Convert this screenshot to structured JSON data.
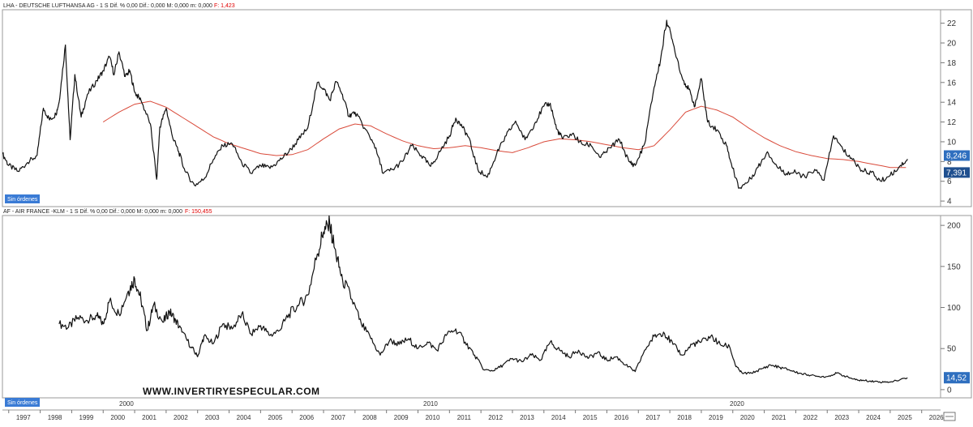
{
  "colors": {
    "price_line": "#111111",
    "moving_average": "#d94a3a",
    "badge_blue": "#3a7bd5",
    "price_box_blue": "#2f6fbf",
    "price_box_dark": "#1f4f8f",
    "red_text": "#e00000"
  },
  "panels": {
    "top": {
      "header": {
        "text": "LHA - DEUTSCHE LUFTHANSA AG - 1 S  Dif. % 0,00  Dif.: 0,000  M: 0,000  m: 0,000",
        "f_label": "F: 1,423"
      },
      "badge": "Sin órdenes",
      "price_tags": {
        "last": "8,246",
        "ma": "7,391"
      }
    },
    "bottom": {
      "header": {
        "text": "AF - AIR FRANCE -KLM - 1 S  Dif. % 0,00  Dif.: 0,000  M: 0,000  m: 0,000",
        "f_label": "F: 150,455"
      },
      "badge": "Sin órdenes",
      "price_tags": {
        "last": "14,52"
      },
      "decade_labels": [
        "2000",
        "2010",
        "2020"
      ]
    }
  },
  "watermark": "WWW.INVERTIRYESPECULAR.COM",
  "x_axis_years": [
    "1997",
    "1998",
    "1999",
    "2000",
    "2001",
    "2002",
    "2003",
    "2004",
    "2005",
    "2006",
    "2007",
    "2008",
    "2009",
    "2010",
    "2011",
    "2012",
    "2013",
    "2014",
    "2015",
    "2016",
    "2017",
    "2018",
    "2019",
    "2020",
    "2021",
    "2022",
    "2023",
    "2024",
    "2025",
    "2026"
  ],
  "chart_data": [
    {
      "type": "line",
      "title": "LHA - DEUTSCHE LUFTHANSA AG - 1 S",
      "xlabel": "",
      "ylabel": "",
      "xlim": [
        1996.8,
        2026.6
      ],
      "ylim": [
        3.6,
        23.2
      ],
      "yticks": [
        4,
        6,
        8,
        10,
        12,
        14,
        16,
        18,
        20,
        22
      ],
      "series": [
        {
          "role": "price",
          "x": [
            1996.8,
            1997.0,
            1997.3,
            1997.6,
            1997.9,
            1998.1,
            1998.3,
            1998.5,
            1998.6,
            1998.8,
            1998.95,
            1999.1,
            1999.3,
            1999.5,
            1999.8,
            2000.0,
            2000.2,
            2000.35,
            2000.5,
            2000.7,
            2000.85,
            2001.0,
            2001.2,
            2001.5,
            2001.7,
            2001.8,
            2002.0,
            2002.2,
            2002.4,
            2002.6,
            2002.9,
            2003.2,
            2003.5,
            2003.8,
            2004.1,
            2004.4,
            2004.7,
            2005.0,
            2005.3,
            2005.6,
            2005.9,
            2006.2,
            2006.5,
            2006.8,
            2007.0,
            2007.2,
            2007.4,
            2007.6,
            2007.8,
            2008.0,
            2008.3,
            2008.6,
            2008.9,
            2009.2,
            2009.5,
            2009.8,
            2010.1,
            2010.4,
            2010.7,
            2011.0,
            2011.2,
            2011.4,
            2011.6,
            2011.9,
            2012.2,
            2012.5,
            2012.8,
            2013.1,
            2013.4,
            2013.7,
            2014.0,
            2014.2,
            2014.4,
            2014.6,
            2014.9,
            2015.2,
            2015.5,
            2015.8,
            2016.1,
            2016.4,
            2016.7,
            2016.9,
            2017.2,
            2017.5,
            2017.7,
            2017.9,
            2018.1,
            2018.4,
            2018.6,
            2018.8,
            2019.0,
            2019.2,
            2019.5,
            2019.8,
            2020.0,
            2020.2,
            2020.5,
            2020.8,
            2021.1,
            2021.4,
            2021.7,
            2022.0,
            2022.3,
            2022.6,
            2022.9,
            2023.2,
            2023.5,
            2023.8,
            2024.1,
            2024.4,
            2024.7,
            2025.0,
            2025.3,
            2025.55
          ],
          "y": [
            8.8,
            7.6,
            7.0,
            7.9,
            8.6,
            13.4,
            12.2,
            12.8,
            14.0,
            19.8,
            10.2,
            16.8,
            12.5,
            14.8,
            16.2,
            17.2,
            18.6,
            16.8,
            19.1,
            16.6,
            17.2,
            15.0,
            14.2,
            11.8,
            6.2,
            11.5,
            13.4,
            10.5,
            9.0,
            7.0,
            5.6,
            6.2,
            8.2,
            9.6,
            9.8,
            7.9,
            6.8,
            7.6,
            7.3,
            8.1,
            9.0,
            10.2,
            11.4,
            16.0,
            15.4,
            14.2,
            16.1,
            14.8,
            12.6,
            13.0,
            11.4,
            9.8,
            6.8,
            7.2,
            8.0,
            9.6,
            8.6,
            7.5,
            9.0,
            10.6,
            12.4,
            11.5,
            10.5,
            7.2,
            6.4,
            8.8,
            10.6,
            12.1,
            10.2,
            11.8,
            13.6,
            13.9,
            11.3,
            10.3,
            10.8,
            9.8,
            9.6,
            8.4,
            9.4,
            10.2,
            8.0,
            7.6,
            9.8,
            15.5,
            18.2,
            22.3,
            20.0,
            16.4,
            15.3,
            13.6,
            16.4,
            12.0,
            11.2,
            9.6,
            7.3,
            5.3,
            6.0,
            7.4,
            9.0,
            7.5,
            6.8,
            6.9,
            6.4,
            7.2,
            6.1,
            10.6,
            9.2,
            8.2,
            7.1,
            6.9,
            6.0,
            6.6,
            7.5,
            8.25
          ]
        },
        {
          "role": "moving_average",
          "x": [
            2000.0,
            2000.5,
            2001.0,
            2001.5,
            2002.0,
            2002.5,
            2003.0,
            2003.5,
            2004.0,
            2004.5,
            2005.0,
            2005.5,
            2006.0,
            2006.5,
            2007.0,
            2007.5,
            2008.0,
            2008.5,
            2009.0,
            2009.5,
            2010.0,
            2010.5,
            2011.0,
            2011.5,
            2012.0,
            2012.5,
            2013.0,
            2013.5,
            2014.0,
            2014.5,
            2015.0,
            2015.5,
            2016.0,
            2016.5,
            2017.0,
            2017.5,
            2018.0,
            2018.5,
            2019.0,
            2019.5,
            2020.0,
            2020.5,
            2021.0,
            2021.5,
            2022.0,
            2022.5,
            2023.0,
            2023.5,
            2024.0,
            2024.5,
            2025.0,
            2025.5
          ],
          "y": [
            12.0,
            13.0,
            13.8,
            14.1,
            13.5,
            12.5,
            11.5,
            10.5,
            9.8,
            9.3,
            8.8,
            8.6,
            8.7,
            9.2,
            10.3,
            11.3,
            11.8,
            11.6,
            10.8,
            10.1,
            9.6,
            9.3,
            9.4,
            9.6,
            9.4,
            9.1,
            8.9,
            9.4,
            10.0,
            10.3,
            10.2,
            10.0,
            9.7,
            9.4,
            9.2,
            9.6,
            11.2,
            13.0,
            13.6,
            13.2,
            12.5,
            11.4,
            10.4,
            9.6,
            9.0,
            8.6,
            8.3,
            8.2,
            8.0,
            7.7,
            7.4,
            7.39
          ]
        }
      ]
    },
    {
      "type": "line",
      "title": "AF - AIR FRANCE -KLM - 1 S",
      "xlabel": "",
      "ylabel": "",
      "xlim": [
        1996.8,
        2026.6
      ],
      "ylim": [
        -8,
        210
      ],
      "yticks": [
        0,
        50,
        100,
        150,
        200
      ],
      "series": [
        {
          "role": "price",
          "x": [
            1998.6,
            1998.9,
            1999.2,
            1999.5,
            1999.8,
            2000.0,
            2000.2,
            2000.5,
            2000.8,
            2001.0,
            2001.2,
            2001.4,
            2001.6,
            2001.9,
            2002.1,
            2002.3,
            2002.5,
            2002.8,
            2003.0,
            2003.2,
            2003.5,
            2003.8,
            2004.1,
            2004.4,
            2004.7,
            2005.0,
            2005.3,
            2005.6,
            2005.9,
            2006.2,
            2006.5,
            2006.8,
            2007.0,
            2007.2,
            2007.4,
            2007.6,
            2007.9,
            2008.2,
            2008.5,
            2008.8,
            2009.1,
            2009.4,
            2009.7,
            2010.0,
            2010.3,
            2010.6,
            2010.9,
            2011.2,
            2011.5,
            2011.8,
            2012.1,
            2012.4,
            2012.7,
            2013.0,
            2013.3,
            2013.6,
            2013.9,
            2014.2,
            2014.5,
            2014.8,
            2015.1,
            2015.4,
            2015.7,
            2016.0,
            2016.3,
            2016.6,
            2016.9,
            2017.2,
            2017.5,
            2017.8,
            2018.1,
            2018.4,
            2018.7,
            2019.0,
            2019.3,
            2019.6,
            2019.9,
            2020.1,
            2020.3,
            2020.6,
            2020.9,
            2021.2,
            2021.5,
            2021.8,
            2022.1,
            2022.4,
            2022.7,
            2023.0,
            2023.3,
            2023.6,
            2023.9,
            2024.2,
            2024.5,
            2024.8,
            2025.1,
            2025.55
          ],
          "y": [
            80,
            76,
            88,
            84,
            90,
            80,
            108,
            92,
            120,
            135,
            110,
            72,
            103,
            82,
            95,
            85,
            70,
            52,
            40,
            65,
            56,
            80,
            74,
            92,
            68,
            78,
            66,
            72,
            92,
            102,
            115,
            165,
            192,
            200,
            162,
            135,
            110,
            80,
            62,
            42,
            60,
            55,
            62,
            50,
            58,
            48,
            66,
            74,
            58,
            42,
            24,
            23,
            30,
            38,
            34,
            42,
            36,
            58,
            48,
            40,
            48,
            38,
            45,
            36,
            40,
            30,
            22,
            48,
            65,
            70,
            55,
            42,
            55,
            58,
            65,
            55,
            52,
            28,
            20,
            20,
            25,
            30,
            27,
            24,
            20,
            18,
            16,
            16,
            20,
            16,
            12,
            11,
            10,
            9,
            10,
            14.52
          ]
        }
      ]
    }
  ]
}
